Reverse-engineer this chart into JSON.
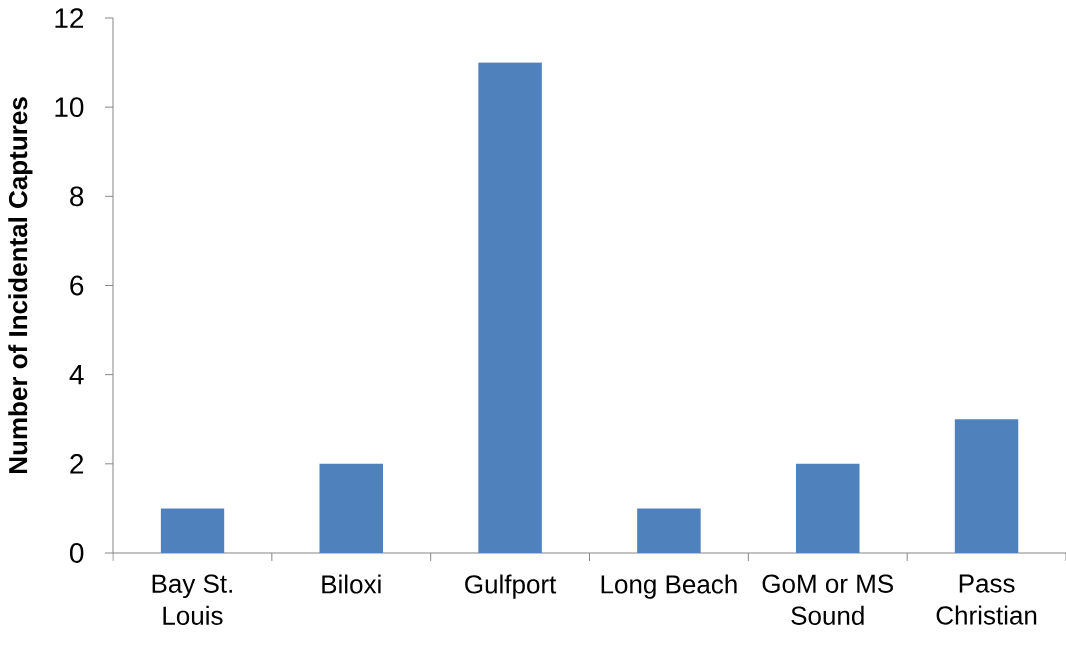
{
  "chart_data": {
    "type": "bar",
    "ylabel": "Number of Incidental Captures",
    "categories": [
      "Bay St. Louis",
      "Biloxi",
      "Gulfport",
      "Long Beach",
      "GoM or MS Sound",
      "Pass Christian"
    ],
    "values": [
      1,
      2,
      11,
      1,
      2,
      3
    ],
    "color": "#4f81bd",
    "ylim": [
      0,
      12
    ],
    "yticks": [
      0,
      2,
      4,
      6,
      8,
      10,
      12
    ]
  }
}
